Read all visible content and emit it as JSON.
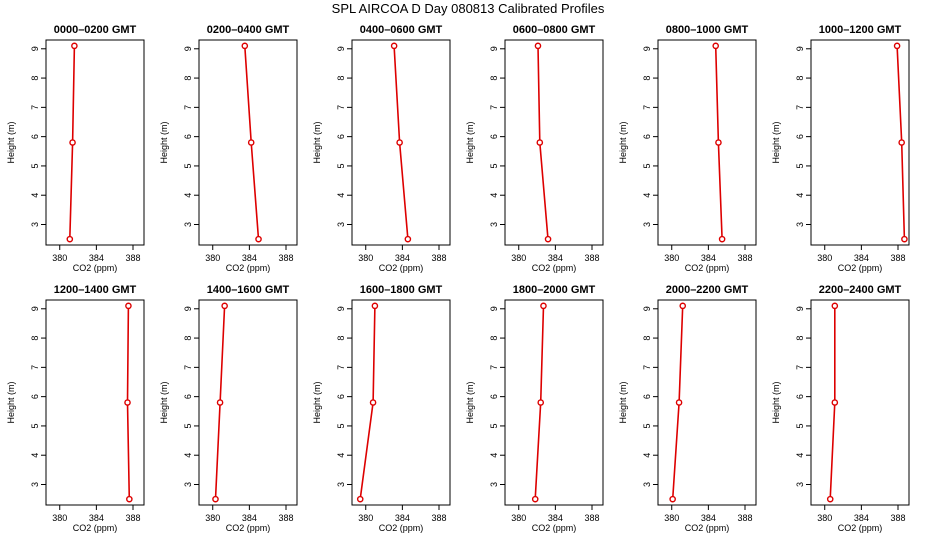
{
  "title": "SPL AIRCOA D  Day 080813  Calibrated Profiles",
  "colors": {
    "series": "#dd0000",
    "axis": "#000000"
  },
  "chart_data": [
    {
      "type": "line",
      "title": "0000–0200 GMT",
      "xlabel": "CO2 (ppm)",
      "ylabel": "Height (m)",
      "xlim": [
        378.5,
        389.2
      ],
      "ylim": [
        2.3,
        9.3
      ],
      "xticks": [
        380,
        384,
        388
      ],
      "yticks": [
        3,
        4,
        5,
        6,
        7,
        8,
        9
      ],
      "series": [
        {
          "x": [
            381.1,
            381.4,
            381.6
          ],
          "y": [
            2.5,
            5.8,
            9.1
          ]
        }
      ]
    },
    {
      "type": "line",
      "title": "0200–0400 GMT",
      "xlabel": "CO2 (ppm)",
      "ylabel": "Height (m)",
      "xlim": [
        378.5,
        389.2
      ],
      "ylim": [
        2.3,
        9.3
      ],
      "xticks": [
        380,
        384,
        388
      ],
      "yticks": [
        3,
        4,
        5,
        6,
        7,
        8,
        9
      ],
      "series": [
        {
          "x": [
            385.0,
            384.2,
            383.5
          ],
          "y": [
            2.5,
            5.8,
            9.1
          ]
        }
      ]
    },
    {
      "type": "line",
      "title": "0400–0600 GMT",
      "xlabel": "CO2 (ppm)",
      "ylabel": "Height (m)",
      "xlim": [
        378.5,
        389.2
      ],
      "ylim": [
        2.3,
        9.3
      ],
      "xticks": [
        380,
        384,
        388
      ],
      "yticks": [
        3,
        4,
        5,
        6,
        7,
        8,
        9
      ],
      "series": [
        {
          "x": [
            384.6,
            383.7,
            383.1
          ],
          "y": [
            2.5,
            5.8,
            9.1
          ]
        }
      ]
    },
    {
      "type": "line",
      "title": "0600–0800 GMT",
      "xlabel": "CO2 (ppm)",
      "ylabel": "Height (m)",
      "xlim": [
        378.5,
        389.2
      ],
      "ylim": [
        2.3,
        9.3
      ],
      "xticks": [
        380,
        384,
        388
      ],
      "yticks": [
        3,
        4,
        5,
        6,
        7,
        8,
        9
      ],
      "series": [
        {
          "x": [
            383.2,
            382.3,
            382.1
          ],
          "y": [
            2.5,
            5.8,
            9.1
          ]
        }
      ]
    },
    {
      "type": "line",
      "title": "0800–1000 GMT",
      "xlabel": "CO2 (ppm)",
      "ylabel": "Height (m)",
      "xlim": [
        378.5,
        389.2
      ],
      "ylim": [
        2.3,
        9.3
      ],
      "xticks": [
        380,
        384,
        388
      ],
      "yticks": [
        3,
        4,
        5,
        6,
        7,
        8,
        9
      ],
      "series": [
        {
          "x": [
            385.5,
            385.1,
            384.8
          ],
          "y": [
            2.5,
            5.8,
            9.1
          ]
        }
      ]
    },
    {
      "type": "line",
      "title": "1000–1200 GMT",
      "xlabel": "CO2 (ppm)",
      "ylabel": "Height (m)",
      "xlim": [
        378.5,
        389.2
      ],
      "ylim": [
        2.3,
        9.3
      ],
      "xticks": [
        380,
        384,
        388
      ],
      "yticks": [
        3,
        4,
        5,
        6,
        7,
        8,
        9
      ],
      "series": [
        {
          "x": [
            388.7,
            388.4,
            387.9
          ],
          "y": [
            2.5,
            5.8,
            9.1
          ]
        }
      ]
    },
    {
      "type": "line",
      "title": "1200–1400 GMT",
      "xlabel": "CO2 (ppm)",
      "ylabel": "Height (m)",
      "xlim": [
        378.5,
        389.2
      ],
      "ylim": [
        2.3,
        9.3
      ],
      "xticks": [
        380,
        384,
        388
      ],
      "yticks": [
        3,
        4,
        5,
        6,
        7,
        8,
        9
      ],
      "series": [
        {
          "x": [
            387.6,
            387.4,
            387.5
          ],
          "y": [
            2.5,
            5.8,
            9.1
          ]
        }
      ]
    },
    {
      "type": "line",
      "title": "1400–1600 GMT",
      "xlabel": "CO2 (ppm)",
      "ylabel": "Height (m)",
      "xlim": [
        378.5,
        389.2
      ],
      "ylim": [
        2.3,
        9.3
      ],
      "xticks": [
        380,
        384,
        388
      ],
      "yticks": [
        3,
        4,
        5,
        6,
        7,
        8,
        9
      ],
      "series": [
        {
          "x": [
            380.3,
            380.8,
            381.3
          ],
          "y": [
            2.5,
            5.8,
            9.1
          ]
        }
      ]
    },
    {
      "type": "line",
      "title": "1600–1800 GMT",
      "xlabel": "CO2 (ppm)",
      "ylabel": "Height (m)",
      "xlim": [
        378.5,
        389.2
      ],
      "ylim": [
        2.3,
        9.3
      ],
      "xticks": [
        380,
        384,
        388
      ],
      "yticks": [
        3,
        4,
        5,
        6,
        7,
        8,
        9
      ],
      "series": [
        {
          "x": [
            379.4,
            380.8,
            381.0
          ],
          "y": [
            2.5,
            5.8,
            9.1
          ]
        }
      ]
    },
    {
      "type": "line",
      "title": "1800–2000 GMT",
      "xlabel": "CO2 (ppm)",
      "ylabel": "Height (m)",
      "xlim": [
        378.5,
        389.2
      ],
      "ylim": [
        2.3,
        9.3
      ],
      "xticks": [
        380,
        384,
        388
      ],
      "yticks": [
        3,
        4,
        5,
        6,
        7,
        8,
        9
      ],
      "series": [
        {
          "x": [
            381.8,
            382.4,
            382.7
          ],
          "y": [
            2.5,
            5.8,
            9.1
          ]
        }
      ]
    },
    {
      "type": "line",
      "title": "2000–2200 GMT",
      "xlabel": "CO2 (ppm)",
      "ylabel": "Height (m)",
      "xlim": [
        378.5,
        389.2
      ],
      "ylim": [
        2.3,
        9.3
      ],
      "xticks": [
        380,
        384,
        388
      ],
      "yticks": [
        3,
        4,
        5,
        6,
        7,
        8,
        9
      ],
      "series": [
        {
          "x": [
            380.1,
            380.8,
            381.2
          ],
          "y": [
            2.5,
            5.8,
            9.1
          ]
        }
      ]
    },
    {
      "type": "line",
      "title": "2200–2400 GMT",
      "xlabel": "CO2 (ppm)",
      "ylabel": "Height (m)",
      "xlim": [
        378.5,
        389.2
      ],
      "ylim": [
        2.3,
        9.3
      ],
      "xticks": [
        380,
        384,
        388
      ],
      "yticks": [
        3,
        4,
        5,
        6,
        7,
        8,
        9
      ],
      "series": [
        {
          "x": [
            380.6,
            381.1,
            381.1
          ],
          "y": [
            2.5,
            5.8,
            9.1
          ]
        }
      ]
    }
  ]
}
